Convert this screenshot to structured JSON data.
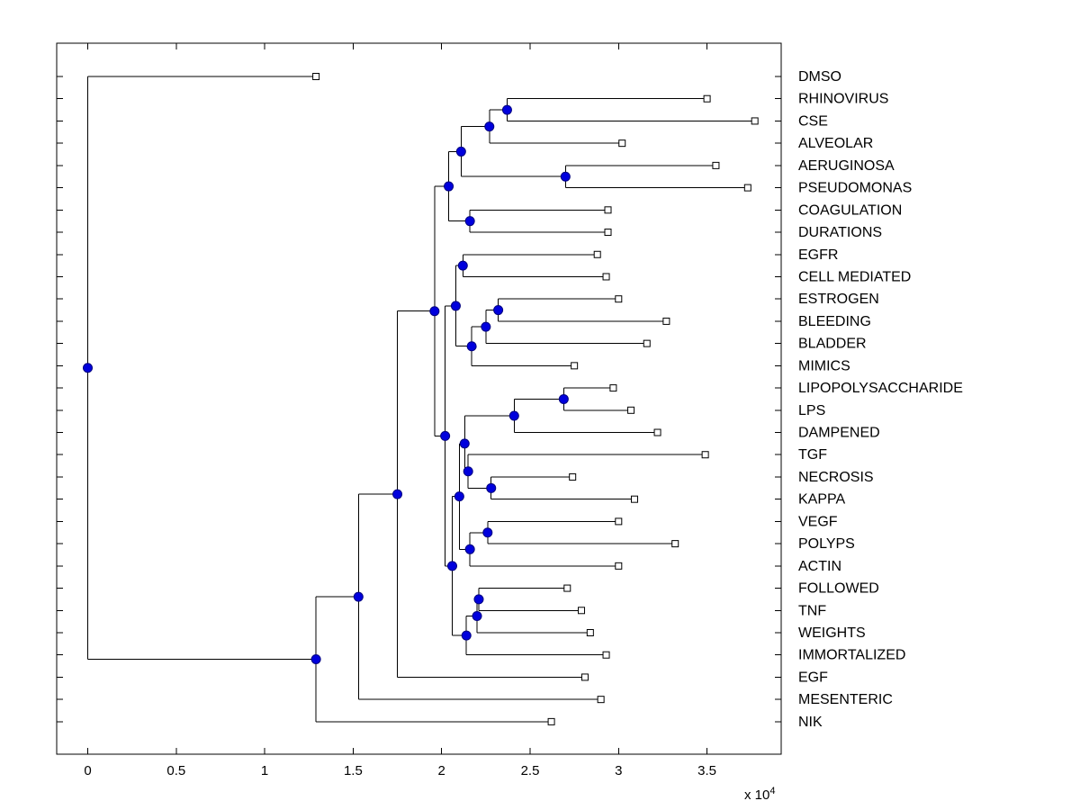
{
  "figure": {
    "background": "#ffffff",
    "axis_color": "#000000",
    "line_color": "#000000",
    "internal_node_color": "#0000dd",
    "internal_node_edge": "#000080",
    "leaf_marker_fill": "#ffffff",
    "leaf_marker_edge": "#000000",
    "x_ticks": [
      "0",
      "0.5",
      "1",
      "1.5",
      "2",
      "2.5",
      "3",
      "3.5"
    ],
    "x_tick_values": [
      0,
      0.5,
      1,
      1.5,
      2,
      2.5,
      3,
      3.5
    ],
    "multiplier_base": "x 10",
    "multiplier_exp": "4"
  },
  "chart_data": {
    "type": "dendrogram",
    "orientation": "horizontal, leaf labels on right",
    "x_unit": "1e4",
    "xlim": [
      -0.18,
      3.92
    ],
    "leaves": [
      {
        "label": "DMSO",
        "x": 1.29
      },
      {
        "label": "RHINOVIRUS",
        "x": 3.5
      },
      {
        "label": "CSE",
        "x": 3.77
      },
      {
        "label": "ALVEOLAR",
        "x": 3.02
      },
      {
        "label": "AERUGINOSA",
        "x": 3.55
      },
      {
        "label": "PSEUDOMONAS",
        "x": 3.73
      },
      {
        "label": "COAGULATION",
        "x": 2.94
      },
      {
        "label": "DURATIONS",
        "x": 2.94
      },
      {
        "label": "EGFR",
        "x": 2.88
      },
      {
        "label": "CELL MEDIATED",
        "x": 2.93
      },
      {
        "label": "ESTROGEN",
        "x": 3.0
      },
      {
        "label": "BLEEDING",
        "x": 3.27
      },
      {
        "label": "BLADDER",
        "x": 3.16
      },
      {
        "label": "MIMICS",
        "x": 2.75
      },
      {
        "label": "LIPOPOLYSACCHARIDE",
        "x": 2.97
      },
      {
        "label": "LPS",
        "x": 3.07
      },
      {
        "label": "DAMPENED",
        "x": 3.22
      },
      {
        "label": "TGF",
        "x": 3.49
      },
      {
        "label": "NECROSIS",
        "x": 2.74
      },
      {
        "label": "KAPPA",
        "x": 3.09
      },
      {
        "label": "VEGF",
        "x": 3.0
      },
      {
        "label": "POLYPS",
        "x": 3.32
      },
      {
        "label": "ACTIN",
        "x": 3.0
      },
      {
        "label": "FOLLOWED",
        "x": 2.71
      },
      {
        "label": "TNF",
        "x": 2.79
      },
      {
        "label": "WEIGHTS",
        "x": 2.84
      },
      {
        "label": "IMMORTALIZED",
        "x": 2.93
      },
      {
        "label": "EGF",
        "x": 2.81
      },
      {
        "label": "MESENTERIC",
        "x": 2.9
      },
      {
        "label": "NIK",
        "x": 2.62
      }
    ],
    "tree": {
      "x": 0.0,
      "children": [
        {
          "leaf": "DMSO"
        },
        {
          "x": 1.29,
          "children": [
            {
              "x": 1.53,
              "children": [
                {
                  "x": 1.75,
                  "children": [
                    {
                      "x": 1.96,
                      "children": [
                        {
                          "x": 2.04,
                          "children": [
                            {
                              "x": 2.11,
                              "children": [
                                {
                                  "x": 2.27,
                                  "children": [
                                    {
                                      "x": 2.37,
                                      "children": [
                                        {
                                          "leaf": "RHINOVIRUS"
                                        },
                                        {
                                          "leaf": "CSE"
                                        }
                                      ]
                                    },
                                    {
                                      "leaf": "ALVEOLAR"
                                    }
                                  ]
                                },
                                {
                                  "x": 2.7,
                                  "children": [
                                    {
                                      "leaf": "AERUGINOSA"
                                    },
                                    {
                                      "leaf": "PSEUDOMONAS"
                                    }
                                  ]
                                }
                              ]
                            },
                            {
                              "x": 2.16,
                              "children": [
                                {
                                  "leaf": "COAGULATION"
                                },
                                {
                                  "leaf": "DURATIONS"
                                }
                              ]
                            }
                          ]
                        },
                        {
                          "x": 2.02,
                          "children": [
                            {
                              "x": 2.08,
                              "children": [
                                {
                                  "x": 2.12,
                                  "children": [
                                    {
                                      "leaf": "EGFR"
                                    },
                                    {
                                      "leaf": "CELL MEDIATED"
                                    }
                                  ]
                                },
                                {
                                  "x": 2.17,
                                  "children": [
                                    {
                                      "x": 2.25,
                                      "children": [
                                        {
                                          "x": 2.32,
                                          "children": [
                                            {
                                              "leaf": "ESTROGEN"
                                            },
                                            {
                                              "leaf": "BLEEDING"
                                            }
                                          ]
                                        },
                                        {
                                          "leaf": "BLADDER"
                                        }
                                      ]
                                    },
                                    {
                                      "leaf": "MIMICS"
                                    }
                                  ]
                                }
                              ]
                            },
                            {
                              "x": 2.06,
                              "children": [
                                {
                                  "x": 2.1,
                                  "children": [
                                    {
                                      "x": 2.13,
                                      "children": [
                                        {
                                          "x": 2.41,
                                          "children": [
                                            {
                                              "x": 2.69,
                                              "children": [
                                                {
                                                  "leaf": "LIPOPOLYSACCHARIDE"
                                                },
                                                {
                                                  "leaf": "LPS"
                                                }
                                              ]
                                            },
                                            {
                                              "leaf": "DAMPENED"
                                            }
                                          ]
                                        },
                                        {
                                          "x": 2.15,
                                          "children": [
                                            {
                                              "leaf": "TGF"
                                            },
                                            {
                                              "x": 2.28,
                                              "children": [
                                                {
                                                  "leaf": "NECROSIS"
                                                },
                                                {
                                                  "leaf": "KAPPA"
                                                }
                                              ]
                                            }
                                          ]
                                        }
                                      ]
                                    },
                                    {
                                      "x": 2.16,
                                      "children": [
                                        {
                                          "x": 2.26,
                                          "children": [
                                            {
                                              "leaf": "VEGF"
                                            },
                                            {
                                              "leaf": "POLYPS"
                                            }
                                          ]
                                        },
                                        {
                                          "leaf": "ACTIN"
                                        }
                                      ]
                                    }
                                  ]
                                },
                                {
                                  "x": 2.14,
                                  "children": [
                                    {
                                      "x": 2.2,
                                      "children": [
                                        {
                                          "x": 2.21,
                                          "children": [
                                            {
                                              "leaf": "FOLLOWED"
                                            },
                                            {
                                              "leaf": "TNF"
                                            }
                                          ]
                                        },
                                        {
                                          "leaf": "WEIGHTS"
                                        }
                                      ]
                                    },
                                    {
                                      "leaf": "IMMORTALIZED"
                                    }
                                  ]
                                }
                              ]
                            }
                          ]
                        }
                      ]
                    },
                    {
                      "leaf": "EGF"
                    }
                  ]
                },
                {
                  "leaf": "MESENTERIC"
                }
              ]
            },
            {
              "leaf": "NIK"
            }
          ]
        }
      ]
    }
  }
}
